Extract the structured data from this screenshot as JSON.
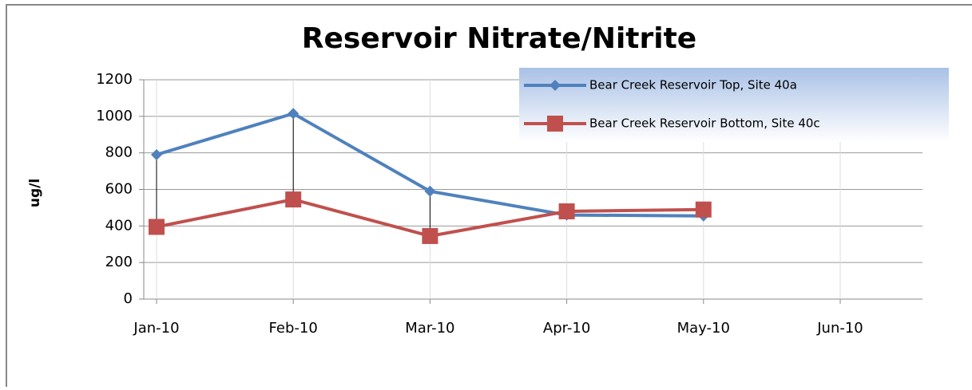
{
  "chart_data": {
    "type": "line",
    "title": "Reservoir Nitrate/Nitrite",
    "y_label": "ug/l",
    "categories": [
      "Jan-10",
      "Feb-10",
      "Mar-10",
      "Apr-10",
      "May-10",
      "Jun-10"
    ],
    "series": [
      {
        "name": "Bear Creek Reservoir Top, Site 40a",
        "color": "#4f81bd",
        "marker": "diamond",
        "values": [
          790,
          1015,
          590,
          460,
          455,
          null
        ]
      },
      {
        "name": "Bear Creek Reservoir Bottom, Site 40c",
        "color": "#c0504d",
        "marker": "square",
        "values": [
          395,
          545,
          345,
          480,
          490,
          null
        ]
      }
    ],
    "ylim": [
      0,
      1200
    ],
    "yticks": [
      0,
      200,
      400,
      600,
      800,
      1000,
      1200
    ],
    "grid": true,
    "drop_lines": true,
    "legend": "upper right"
  }
}
